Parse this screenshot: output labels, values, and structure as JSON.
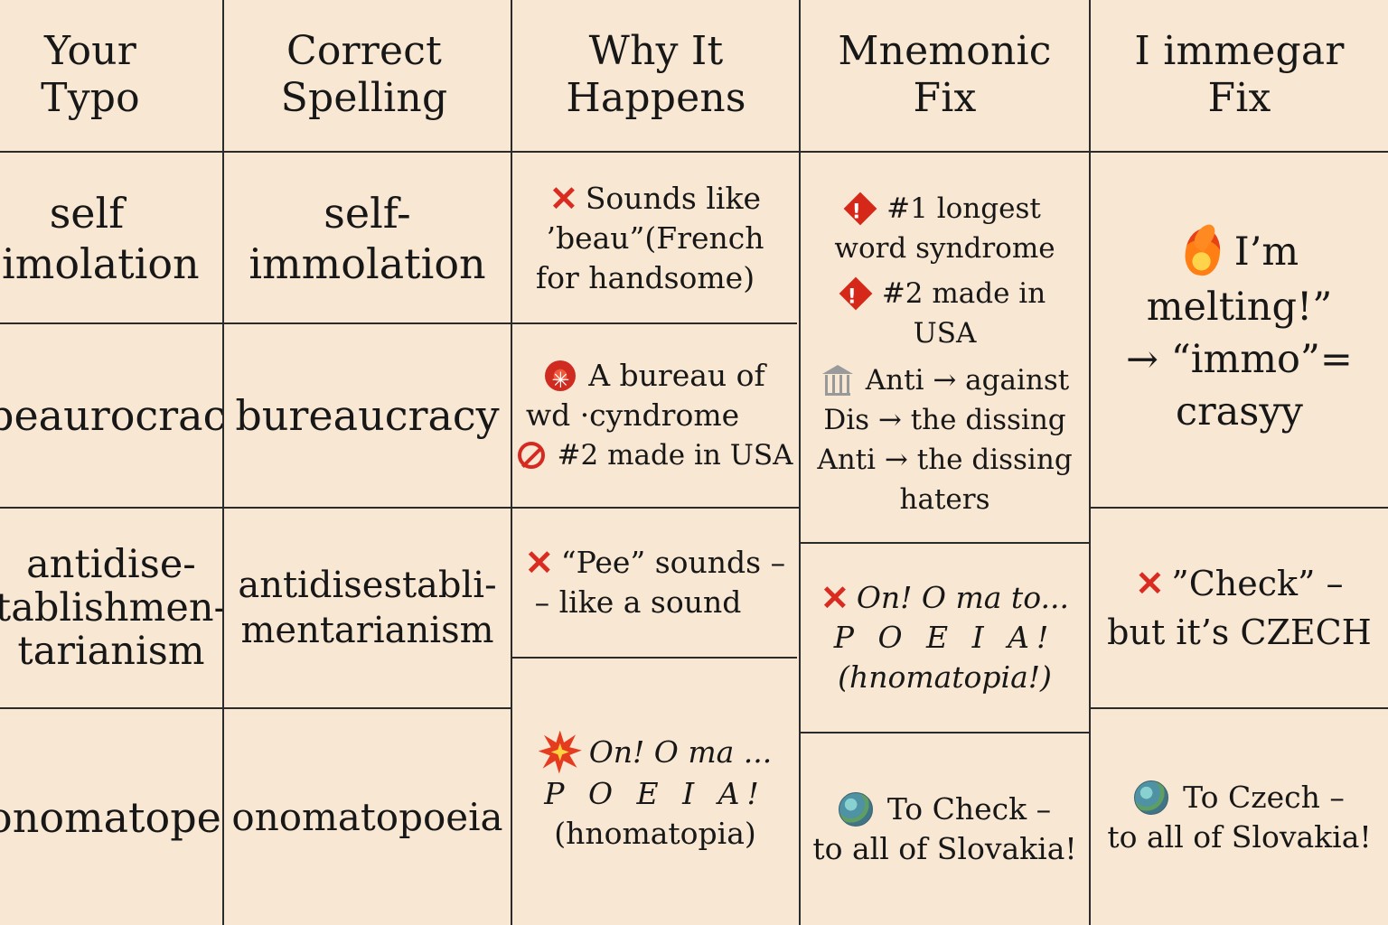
{
  "colors": {
    "background": "#f8e7d2",
    "grid": "#2b2b2b",
    "text": "#171717",
    "accent_red": "#d92b20"
  },
  "headers": [
    {
      "line1": "Your",
      "line2": "Typo"
    },
    {
      "line1": "Correct",
      "line2": "Spelling"
    },
    {
      "line1": "Why It",
      "line2": "Happens"
    },
    {
      "line1": "Mnemonic",
      "line2": "Fix"
    },
    {
      "line1": "I immegar",
      "line2": "Fix"
    }
  ],
  "rows": [
    {
      "typo": [
        "self",
        "imolation"
      ],
      "correct": [
        "self-",
        "immolation"
      ],
      "why": [
        {
          "icon": "x-icon",
          "text": "Sounds like"
        },
        {
          "icon": "",
          "text": "’beau”(French"
        },
        {
          "icon": "",
          "text": "for handsome)"
        }
      ]
    },
    {
      "typo": [
        "beaurocracy"
      ],
      "correct": [
        "bureaucracy"
      ],
      "why": [
        {
          "icon": "red-seal-icon",
          "text": "A bureau of"
        },
        {
          "icon": "",
          "text": "wd ·cyndrome"
        },
        {
          "icon": "no-icon",
          "text": "#2 made in USA"
        }
      ]
    },
    {
      "typo": [
        "antidise-",
        "tablishmen-",
        "tarianism"
      ],
      "correct": [
        "antidisestabli-",
        "mentarianism"
      ],
      "why": [
        {
          "icon": "x-icon",
          "text": "“Pee” sounds –"
        },
        {
          "icon": "",
          "text": "– like a sound"
        }
      ]
    },
    {
      "typo": [
        "onomatopeia"
      ],
      "correct": [
        "onomatopoeia"
      ],
      "why": [
        {
          "icon": "blast-icon",
          "text": "On! O ma ..."
        },
        {
          "icon": "",
          "text": "P O E I A!"
        },
        {
          "icon": "",
          "text": "(hnomatopia)"
        }
      ]
    }
  ],
  "mnemonic": {
    "top": [
      {
        "icon": "diamond-icon",
        "text": "#1 longest"
      },
      {
        "icon": "",
        "text": "word syndrome"
      },
      {
        "icon": "diamond-icon",
        "text": "#2 made in"
      },
      {
        "icon": "",
        "text": "USA"
      },
      {
        "icon": "building-icon",
        "text": "Anti → against"
      },
      {
        "icon": "",
        "text": "Dis → the dissing"
      },
      {
        "icon": "",
        "text": "Anti → the dissing"
      },
      {
        "icon": "",
        "text": "haters"
      }
    ],
    "middle": [
      {
        "icon": "x-icon",
        "text": "On! O ma to..."
      },
      {
        "icon": "",
        "text": "P O E I A!"
      },
      {
        "icon": "",
        "text": "(hnomatopia!)"
      }
    ],
    "bottom": [
      {
        "icon": "globe-icon",
        "text": "To Check –"
      },
      {
        "icon": "",
        "text": "to all of Slovakia!"
      }
    ]
  },
  "immegar": {
    "top": [
      {
        "icon": "fire-icon",
        "text": "I’m"
      },
      {
        "icon": "",
        "text": "melting!”"
      },
      {
        "icon": "",
        "text": "→ “immo”="
      },
      {
        "icon": "",
        "text": "crasyy"
      }
    ],
    "middle": [
      {
        "icon": "x-icon",
        "text": "”Check” –"
      },
      {
        "icon": "",
        "text": "but it’s CZECH"
      }
    ],
    "bottom": [
      {
        "icon": "globe-icon",
        "text": "To Czech –"
      },
      {
        "icon": "",
        "text": "to all of Slovakia!"
      }
    ]
  }
}
